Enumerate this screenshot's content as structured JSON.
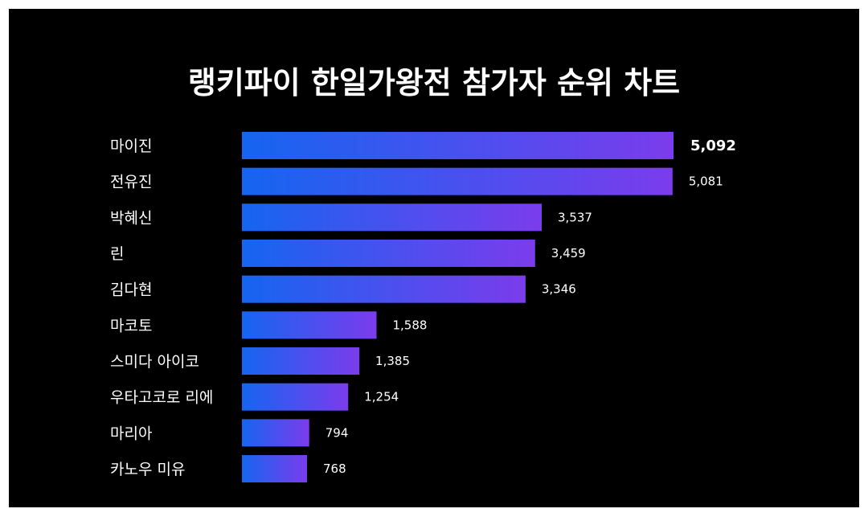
{
  "chart_data": {
    "type": "bar",
    "orientation": "horizontal",
    "title": "랭키파이 한일가왕전 참가자 순위 차트",
    "categories": [
      "마이진",
      "전유진",
      "박혜신",
      "린",
      "김다현",
      "마코토",
      "스미다 아이코",
      "우타고코로 리에",
      "마리아",
      "카노우 미유"
    ],
    "values": [
      5092,
      5081,
      3537,
      3459,
      3346,
      1588,
      1385,
      1254,
      794,
      768
    ],
    "value_labels": [
      "5,092",
      "5,081",
      "3,537",
      "3,459",
      "3,346",
      "1,588",
      "1,385",
      "1,254",
      "794",
      "768"
    ],
    "xlim": [
      0,
      5092
    ],
    "grid": false,
    "legend": "none"
  },
  "colors": {
    "background": "#000000",
    "bar_gradient_start": "#1565f0",
    "bar_gradient_end": "#7b3cec",
    "text": "#ffffff"
  }
}
